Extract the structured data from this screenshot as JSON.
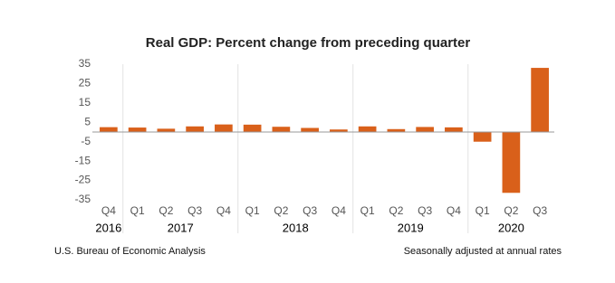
{
  "chart_data": {
    "type": "bar",
    "title": "Real GDP:  Percent change from preceding quarter",
    "categories": [
      "Q4",
      "Q1",
      "Q2",
      "Q3",
      "Q4",
      "Q1",
      "Q2",
      "Q3",
      "Q4",
      "Q1",
      "Q2",
      "Q3",
      "Q4",
      "Q1",
      "Q2",
      "Q3"
    ],
    "years": [
      "2016",
      "2017",
      "2017",
      "2017",
      "2017",
      "2018",
      "2018",
      "2018",
      "2018",
      "2019",
      "2019",
      "2019",
      "2019",
      "2020",
      "2020",
      "2020"
    ],
    "values": [
      2.5,
      2.3,
      1.7,
      2.9,
      3.9,
      3.8,
      2.7,
      2.1,
      1.3,
      2.9,
      1.5,
      2.6,
      2.4,
      -5.0,
      -31.4,
      33.1
    ],
    "color": "#d9601a",
    "ylim": [
      -35,
      35
    ],
    "yticks": [
      35,
      25,
      15,
      5,
      -5,
      -15,
      -25,
      -35
    ],
    "source": "U.S. Bureau of Economic Analysis",
    "note": "Seasonally adjusted at annual rates"
  }
}
